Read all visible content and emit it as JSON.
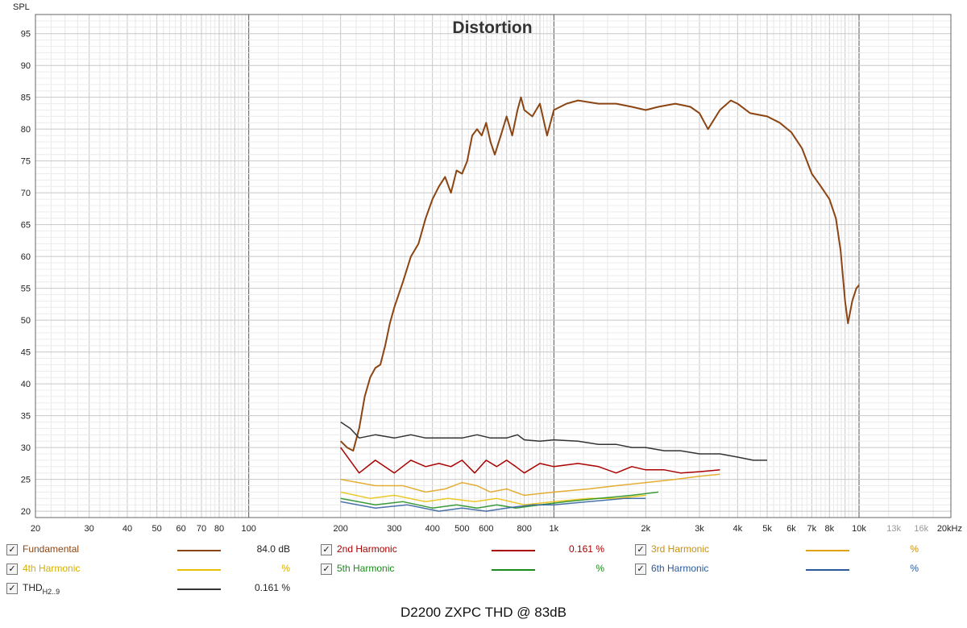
{
  "chart_data": {
    "type": "line",
    "title": "Distortion",
    "ylabel": "SPL",
    "xlabel": "",
    "x_scale": "log",
    "xlim": [
      20,
      20000
    ],
    "ylim": [
      19,
      98
    ],
    "yticks": [
      20,
      25,
      30,
      35,
      40,
      45,
      50,
      55,
      60,
      65,
      70,
      75,
      80,
      85,
      90,
      95
    ],
    "xtick_labels": [
      {
        "v": 20,
        "t": "20"
      },
      {
        "v": 30,
        "t": "30"
      },
      {
        "v": 40,
        "t": "40"
      },
      {
        "v": 50,
        "t": "50"
      },
      {
        "v": 60,
        "t": "60"
      },
      {
        "v": 70,
        "t": "70"
      },
      {
        "v": 80,
        "t": "80"
      },
      {
        "v": 100,
        "t": "100"
      },
      {
        "v": 200,
        "t": "200"
      },
      {
        "v": 300,
        "t": "300"
      },
      {
        "v": 400,
        "t": "400"
      },
      {
        "v": 500,
        "t": "500"
      },
      {
        "v": 600,
        "t": "600"
      },
      {
        "v": 800,
        "t": "800"
      },
      {
        "v": 1000,
        "t": "1k"
      },
      {
        "v": 2000,
        "t": "2k"
      },
      {
        "v": 3000,
        "t": "3k"
      },
      {
        "v": 4000,
        "t": "4k"
      },
      {
        "v": 5000,
        "t": "5k"
      },
      {
        "v": 6000,
        "t": "6k"
      },
      {
        "v": 7000,
        "t": "7k"
      },
      {
        "v": 8000,
        "t": "8k"
      },
      {
        "v": 10000,
        "t": "10k"
      },
      {
        "v": 13000,
        "t": "13k",
        "dim": true
      },
      {
        "v": 16000,
        "t": "16k",
        "dim": true
      },
      {
        "v": 20000,
        "t": "20kHz"
      }
    ],
    "grid": true,
    "series": [
      {
        "name": "Fundamental",
        "color": "#8b4513",
        "points": [
          [
            200,
            31
          ],
          [
            210,
            30
          ],
          [
            220,
            29.5
          ],
          [
            230,
            33
          ],
          [
            240,
            38
          ],
          [
            250,
            41
          ],
          [
            260,
            42.5
          ],
          [
            270,
            43
          ],
          [
            280,
            46
          ],
          [
            290,
            49.5
          ],
          [
            300,
            52
          ],
          [
            320,
            56
          ],
          [
            340,
            60
          ],
          [
            360,
            62
          ],
          [
            380,
            66
          ],
          [
            400,
            69
          ],
          [
            420,
            71
          ],
          [
            440,
            72.5
          ],
          [
            460,
            70
          ],
          [
            480,
            73.5
          ],
          [
            500,
            73
          ],
          [
            520,
            75
          ],
          [
            540,
            79
          ],
          [
            560,
            80
          ],
          [
            580,
            79
          ],
          [
            600,
            81
          ],
          [
            620,
            78
          ],
          [
            640,
            76
          ],
          [
            670,
            79
          ],
          [
            700,
            82
          ],
          [
            730,
            79
          ],
          [
            760,
            83
          ],
          [
            780,
            85
          ],
          [
            800,
            83
          ],
          [
            850,
            82
          ],
          [
            900,
            84
          ],
          [
            950,
            79
          ],
          [
            1000,
            83
          ],
          [
            1100,
            84
          ],
          [
            1200,
            84.5
          ],
          [
            1400,
            84
          ],
          [
            1600,
            84
          ],
          [
            1800,
            83.5
          ],
          [
            2000,
            83
          ],
          [
            2200,
            83.5
          ],
          [
            2500,
            84
          ],
          [
            2800,
            83.5
          ],
          [
            3000,
            82.5
          ],
          [
            3200,
            80
          ],
          [
            3500,
            83
          ],
          [
            3800,
            84.5
          ],
          [
            4000,
            84
          ],
          [
            4400,
            82.5
          ],
          [
            5000,
            82
          ],
          [
            5500,
            81
          ],
          [
            6000,
            79.5
          ],
          [
            6500,
            77
          ],
          [
            7000,
            73
          ],
          [
            7500,
            71
          ],
          [
            8000,
            69
          ],
          [
            8400,
            66
          ],
          [
            8700,
            61
          ],
          [
            9000,
            53
          ],
          [
            9200,
            49.5
          ],
          [
            9500,
            53
          ],
          [
            9800,
            55
          ],
          [
            10000,
            55.5
          ]
        ]
      },
      {
        "name": "2nd Harmonic",
        "color": "#aa0000",
        "points": [
          [
            200,
            30
          ],
          [
            230,
            26
          ],
          [
            260,
            28
          ],
          [
            300,
            26
          ],
          [
            340,
            28
          ],
          [
            380,
            27
          ],
          [
            420,
            27.5
          ],
          [
            460,
            27
          ],
          [
            500,
            28
          ],
          [
            550,
            26
          ],
          [
            600,
            28
          ],
          [
            650,
            27
          ],
          [
            700,
            28
          ],
          [
            750,
            27
          ],
          [
            800,
            26
          ],
          [
            900,
            27.5
          ],
          [
            1000,
            27
          ],
          [
            1200,
            27.5
          ],
          [
            1400,
            27
          ],
          [
            1600,
            26
          ],
          [
            1800,
            27
          ],
          [
            2000,
            26.5
          ],
          [
            2300,
            26.5
          ],
          [
            2600,
            26
          ],
          [
            3000,
            26.2
          ],
          [
            3500,
            26.5
          ]
        ]
      },
      {
        "name": "3rd Harmonic",
        "color": "#e0a010",
        "points": [
          [
            200,
            25
          ],
          [
            260,
            24
          ],
          [
            320,
            24
          ],
          [
            380,
            23
          ],
          [
            440,
            23.5
          ],
          [
            500,
            24.5
          ],
          [
            560,
            24
          ],
          [
            620,
            23
          ],
          [
            700,
            23.5
          ],
          [
            800,
            22.5
          ],
          [
            1000,
            23
          ],
          [
            1300,
            23.5
          ],
          [
            1600,
            24
          ],
          [
            2000,
            24.5
          ],
          [
            2500,
            25
          ],
          [
            3000,
            25.5
          ],
          [
            3500,
            25.8
          ]
        ]
      },
      {
        "name": "4th Harmonic",
        "color": "#e8c000",
        "points": [
          [
            200,
            23
          ],
          [
            250,
            22
          ],
          [
            300,
            22.5
          ],
          [
            380,
            21.5
          ],
          [
            450,
            22
          ],
          [
            550,
            21.5
          ],
          [
            650,
            22
          ],
          [
            800,
            21
          ],
          [
            1000,
            21.5
          ],
          [
            1300,
            22
          ],
          [
            1600,
            22
          ],
          [
            2000,
            22.5
          ]
        ]
      },
      {
        "name": "5th Harmonic",
        "color": "#1a8a1a",
        "points": [
          [
            200,
            22
          ],
          [
            260,
            21
          ],
          [
            320,
            21.5
          ],
          [
            400,
            20.5
          ],
          [
            480,
            21
          ],
          [
            560,
            20.5
          ],
          [
            650,
            21
          ],
          [
            750,
            20.5
          ],
          [
            900,
            21
          ],
          [
            1100,
            21.5
          ],
          [
            1400,
            22
          ],
          [
            1800,
            22.5
          ],
          [
            2200,
            23
          ]
        ]
      },
      {
        "name": "6th Harmonic",
        "color": "#2a5a9a",
        "points": [
          [
            200,
            21.5
          ],
          [
            260,
            20.5
          ],
          [
            330,
            21
          ],
          [
            420,
            20
          ],
          [
            500,
            20.5
          ],
          [
            600,
            20
          ],
          [
            700,
            20.5
          ],
          [
            850,
            21
          ],
          [
            1000,
            21
          ],
          [
            1300,
            21.5
          ],
          [
            1700,
            22
          ],
          [
            2000,
            22
          ]
        ]
      },
      {
        "name": "THD",
        "color": "#333333",
        "points": [
          [
            200,
            34
          ],
          [
            215,
            33
          ],
          [
            230,
            31.5
          ],
          [
            260,
            32
          ],
          [
            300,
            31.5
          ],
          [
            340,
            32
          ],
          [
            380,
            31.5
          ],
          [
            450,
            31.5
          ],
          [
            500,
            31.5
          ],
          [
            560,
            32
          ],
          [
            620,
            31.5
          ],
          [
            700,
            31.5
          ],
          [
            760,
            32
          ],
          [
            800,
            31.2
          ],
          [
            900,
            31
          ],
          [
            1000,
            31.2
          ],
          [
            1200,
            31
          ],
          [
            1400,
            30.5
          ],
          [
            1600,
            30.5
          ],
          [
            1800,
            30
          ],
          [
            2000,
            30
          ],
          [
            2300,
            29.5
          ],
          [
            2600,
            29.5
          ],
          [
            3000,
            29
          ],
          [
            3500,
            29
          ],
          [
            4000,
            28.5
          ],
          [
            4500,
            28
          ],
          [
            5000,
            28
          ]
        ]
      }
    ]
  },
  "legend": [
    {
      "name": "Fundamental",
      "value": "84.0 dB",
      "color": "#8b4513",
      "checked": "✓"
    },
    {
      "name": "2nd Harmonic",
      "value": "0.161 %",
      "color": "#aa0000",
      "checked": "✓"
    },
    {
      "name": "3rd Harmonic",
      "value": "%",
      "color": "#e0a010",
      "checked": "✓"
    },
    {
      "name": "4th Harmonic",
      "value": "%",
      "color": "#e8c000",
      "checked": "✓"
    },
    {
      "name": "5th Harmonic",
      "value": "%",
      "color": "#1a8a1a",
      "checked": "✓"
    },
    {
      "name": "6th Harmonic",
      "value": "%",
      "color": "#2a5a9a",
      "checked": "✓"
    },
    {
      "name": "THD",
      "subscript": "H2..9",
      "value": "0.161 %",
      "color": "#333333",
      "checked": "✓"
    }
  ],
  "footer": "D2200 ZXPC THD @ 83dB"
}
